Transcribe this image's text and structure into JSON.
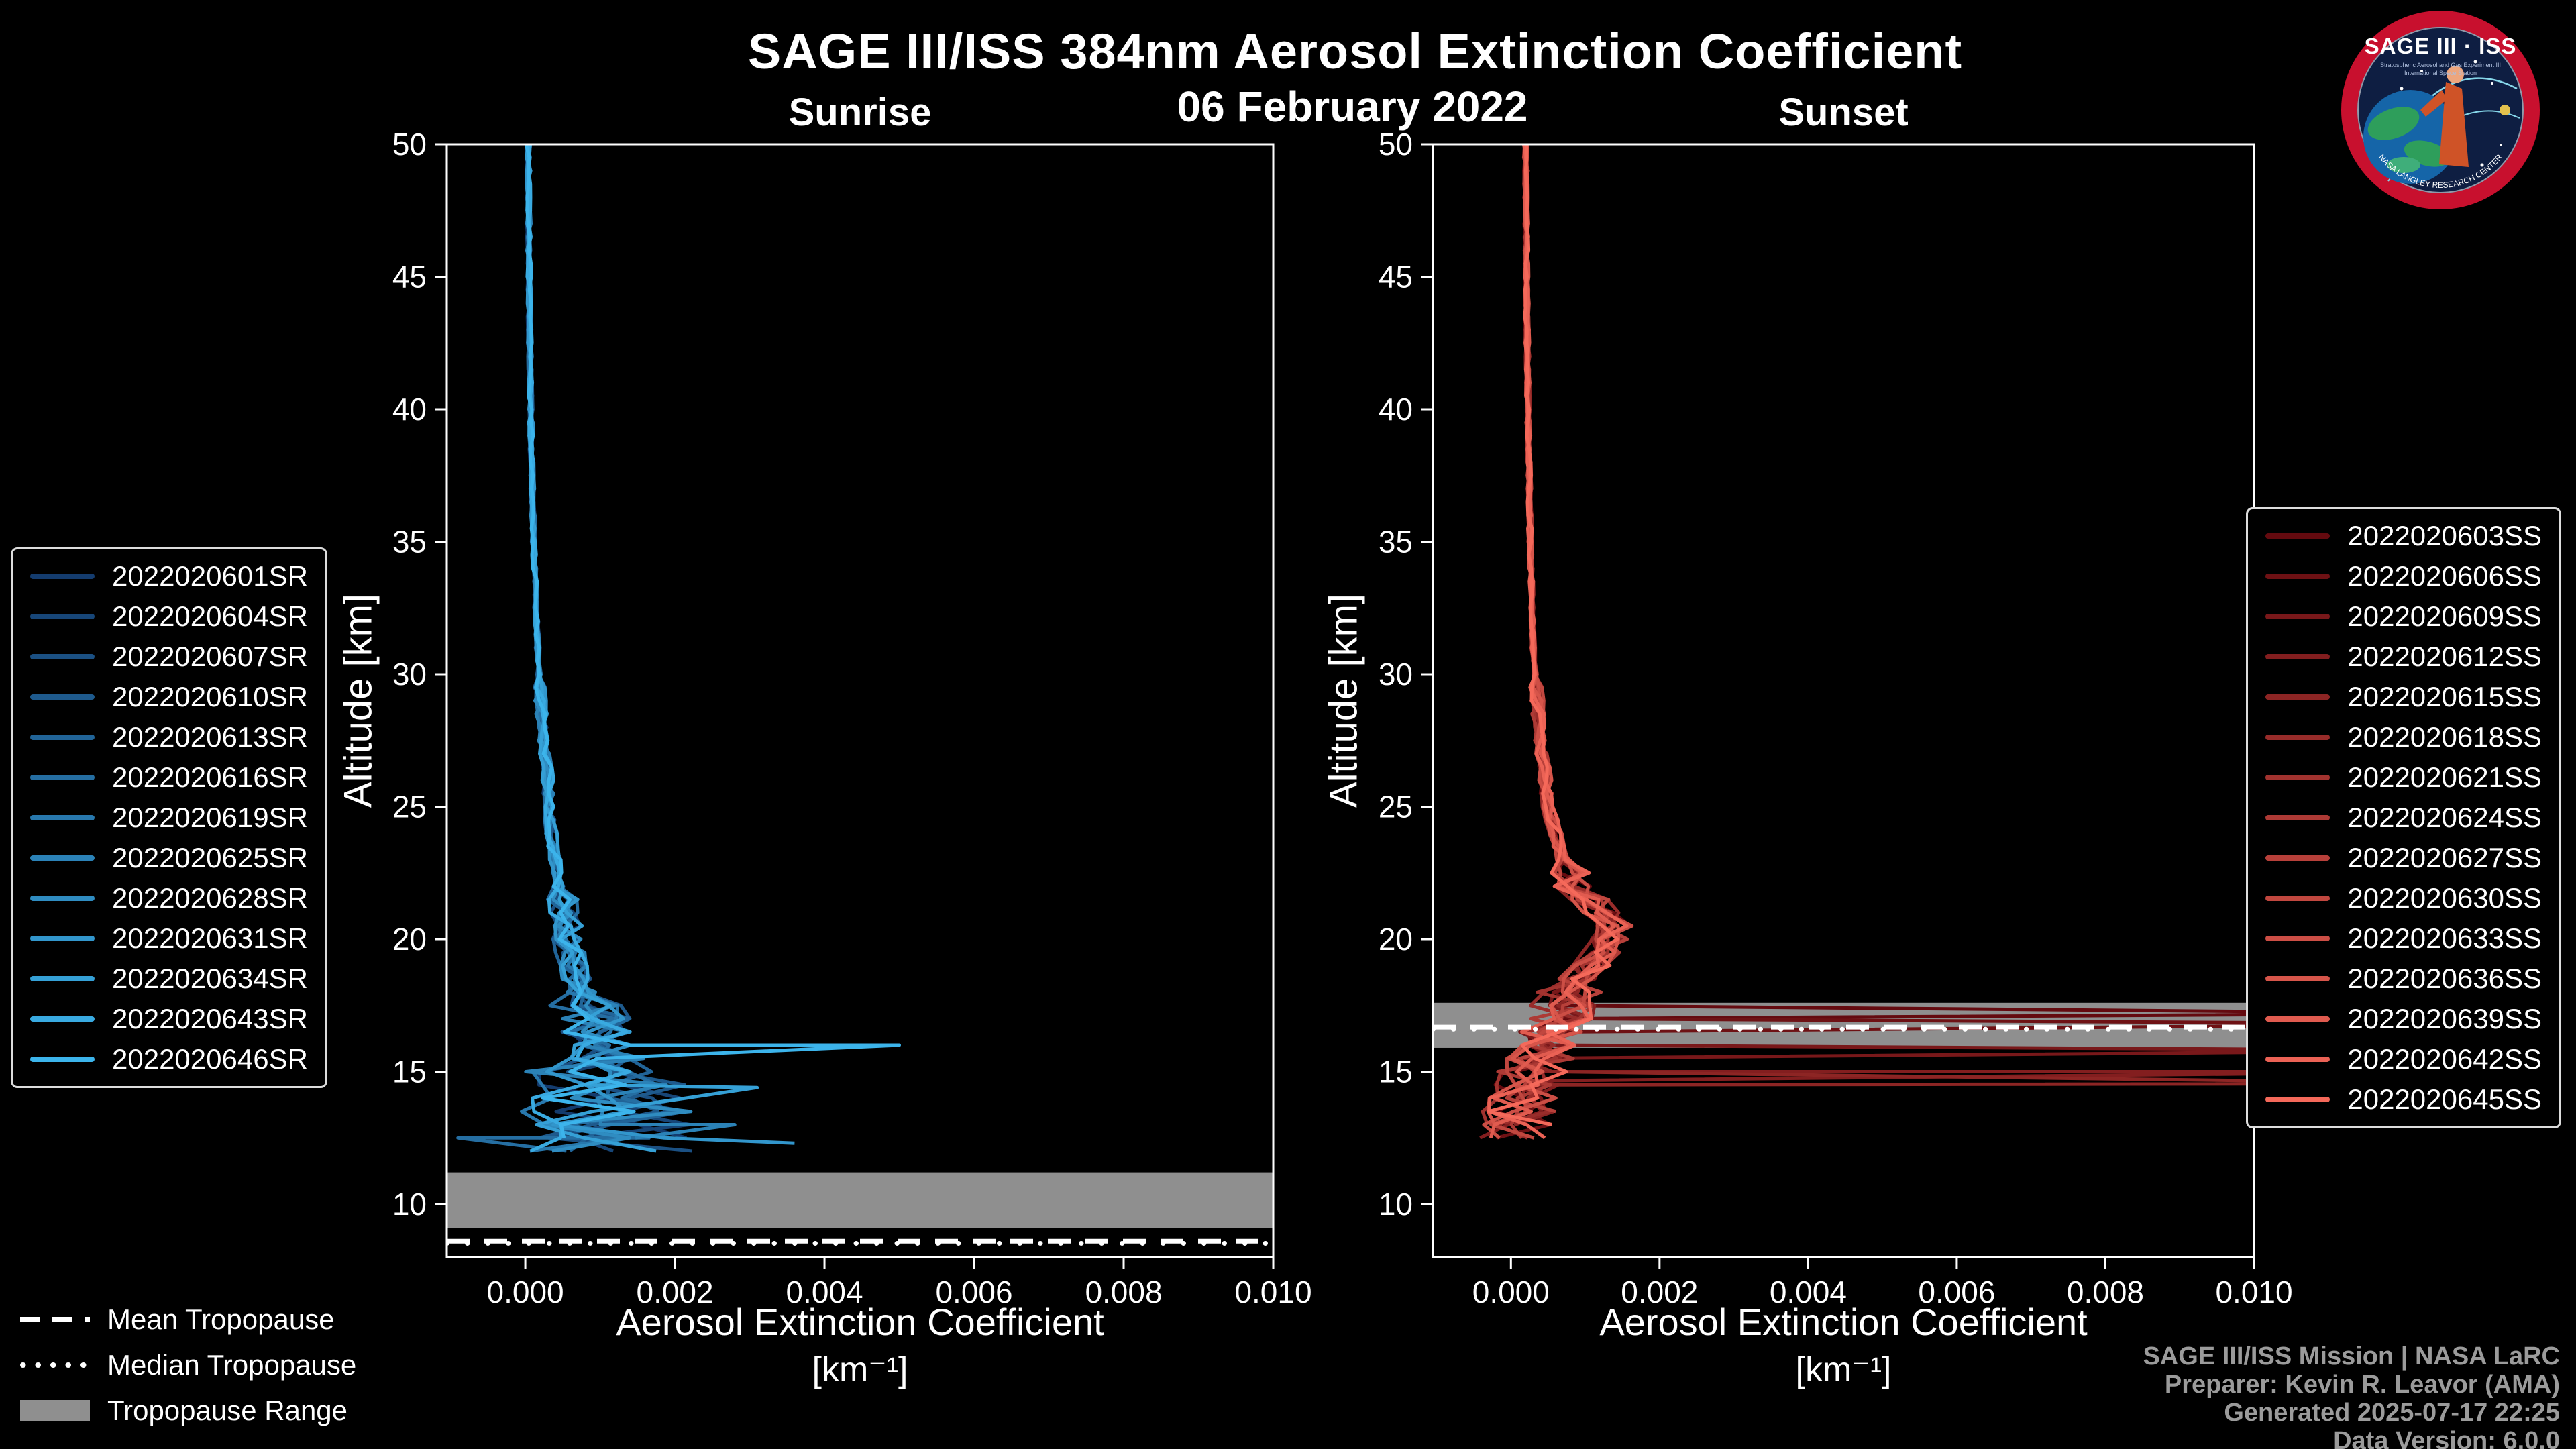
{
  "header": {
    "title": "SAGE III/ISS 384nm Aerosol Extinction Coefficient",
    "date": "06 February 2022"
  },
  "axes": {
    "y_label": "Altitude [km]",
    "x_label": "Aerosol Extinction Coefficient",
    "x_unit": "[km⁻¹]"
  },
  "tropopause_legend": {
    "mean_label": "Mean Tropopause",
    "median_label": "Median Tropopause",
    "range_label": "Tropopause Range"
  },
  "credits": [
    "SAGE III/ISS Mission | NASA LaRC",
    "Preparer: Kevin R. Leavor (AMA)",
    "Generated 2025-07-17 22:25",
    "Data Version: 6.0.0"
  ],
  "logo": {
    "title": "SAGE III · ISS",
    "subtitle1": "Stratospheric Aerosol and Gas Experiment III",
    "subtitle2": "International Space Station",
    "bottom": "NASA LANGLEY RESEARCH CENTER"
  },
  "chart_data": [
    {
      "id": "sunrise",
      "type": "line",
      "title": "Sunrise",
      "xlabel": "Aerosol Extinction Coefficient [km⁻¹]",
      "ylabel": "Altitude [km]",
      "xlim": [
        -0.00105,
        0.01
      ],
      "ylim": [
        8,
        50
      ],
      "x_ticks": [
        0,
        0.002,
        0.004,
        0.006,
        0.008,
        0.01
      ],
      "x_tick_labels": [
        "0.000",
        "0.002",
        "0.004",
        "0.006",
        "0.008",
        "0.010"
      ],
      "y_ticks": [
        10,
        15,
        20,
        25,
        30,
        35,
        40,
        45,
        50
      ],
      "grid": false,
      "legend_position": "outside-left",
      "band_color": "#8f8f8f",
      "tropopause": {
        "range": [
          9.1,
          11.2
        ],
        "mean": 8.6,
        "median": 8.52
      },
      "base_profile": [
        [
          50,
          4e-05
        ],
        [
          45,
          5e-05
        ],
        [
          40,
          7e-05
        ],
        [
          36,
          0.0001
        ],
        [
          32,
          0.00015
        ],
        [
          29,
          0.0002
        ],
        [
          26,
          0.0003
        ],
        [
          24,
          0.00035
        ],
        [
          22,
          0.00045
        ],
        [
          20.5,
          0.00055
        ],
        [
          19.5,
          0.0006
        ],
        [
          18.5,
          0.0007
        ],
        [
          17.5,
          0.0008
        ],
        [
          16.5,
          0.0009
        ],
        [
          16,
          0.00095
        ],
        [
          15.5,
          0.00105
        ],
        [
          15,
          0.0011
        ],
        [
          14.5,
          0.0012
        ],
        [
          14,
          0.00115
        ],
        [
          13.5,
          0.0011
        ],
        [
          13,
          0.00115
        ],
        [
          12.5,
          0.0012
        ],
        [
          12,
          0.0011
        ],
        [
          11.5,
          0.001
        ]
      ],
      "noise_bands": [
        [
          30,
          50,
          3e-05
        ],
        [
          22,
          30,
          8e-05
        ],
        [
          18,
          22,
          0.00022
        ],
        [
          15.5,
          18,
          0.00055
        ],
        [
          8,
          15.5,
          0.00115
        ]
      ],
      "series": [
        {
          "name": "2022020601SR",
          "color": "#143C6E",
          "end_alt": 12.4
        },
        {
          "name": "2022020604SR",
          "color": "#174678",
          "end_alt": 12.0
        },
        {
          "name": "2022020607SR",
          "color": "#1B5083",
          "end_alt": 11.8
        },
        {
          "name": "2022020610SR",
          "color": "#1E5A8D",
          "end_alt": 12.2
        },
        {
          "name": "2022020613SR",
          "color": "#216498",
          "end_alt": 11.6
        },
        {
          "name": "2022020616SR",
          "color": "#256EA2",
          "end_alt": 12.0,
          "features": [
            {
              "type": "spike",
              "alt": 12.5,
              "value": -0.0009
            }
          ]
        },
        {
          "name": "2022020619SR",
          "color": "#2878AD",
          "end_alt": 11.9
        },
        {
          "name": "2022020625SR",
          "color": "#2B82B7",
          "end_alt": 12.3,
          "features": [
            {
              "type": "spike",
              "alt": 13.0,
              "value": 0.0028
            }
          ]
        },
        {
          "name": "2022020628SR",
          "color": "#2F8CC1",
          "end_alt": 11.7
        },
        {
          "name": "2022020631SR",
          "color": "#3296CC",
          "end_alt": 12.1,
          "features": [
            {
              "type": "spike",
              "alt": 12.3,
              "value": 0.0036
            }
          ]
        },
        {
          "name": "2022020634SR",
          "color": "#35A0D6",
          "end_alt": 12.0,
          "features": [
            {
              "type": "spike",
              "alt": 14.4,
              "value": 0.0031
            }
          ]
        },
        {
          "name": "2022020643SR",
          "color": "#39AAE1",
          "end_alt": 11.8
        },
        {
          "name": "2022020646SR",
          "color": "#3CB4EB",
          "end_alt": 12.5,
          "features": [
            {
              "type": "spike",
              "alt": 16.0,
              "value": 0.005
            }
          ]
        }
      ]
    },
    {
      "id": "sunset",
      "type": "line",
      "title": "Sunset",
      "xlabel": "Aerosol Extinction Coefficient [km⁻¹]",
      "ylabel": "Altitude [km]",
      "xlim": [
        -0.00105,
        0.01
      ],
      "ylim": [
        8,
        50
      ],
      "x_ticks": [
        0,
        0.002,
        0.004,
        0.006,
        0.008,
        0.01
      ],
      "x_tick_labels": [
        "0.000",
        "0.002",
        "0.004",
        "0.006",
        "0.008",
        "0.010"
      ],
      "y_ticks": [
        10,
        15,
        20,
        25,
        30,
        35,
        40,
        45,
        50
      ],
      "grid": false,
      "legend_position": "outside-right",
      "band_color": "#8f8f8f",
      "tropopause": {
        "range": [
          15.9,
          17.6
        ],
        "mean": 16.68,
        "median": 16.6
      },
      "base_profile": [
        [
          50,
          0.0002
        ],
        [
          45,
          0.00021
        ],
        [
          40,
          0.00023
        ],
        [
          35,
          0.00026
        ],
        [
          31,
          0.0003
        ],
        [
          28,
          0.00038
        ],
        [
          25,
          0.0005
        ],
        [
          23,
          0.0007
        ],
        [
          22,
          0.00085
        ],
        [
          21.2,
          0.00115
        ],
        [
          20.6,
          0.00135
        ],
        [
          20.2,
          0.0014
        ],
        [
          19.8,
          0.0013
        ],
        [
          19.3,
          0.00115
        ],
        [
          18.8,
          0.001
        ],
        [
          18.3,
          0.00085
        ],
        [
          17.8,
          0.00075
        ],
        [
          17.3,
          0.00065
        ],
        [
          16.8,
          0.00055
        ],
        [
          16.3,
          0.00045
        ],
        [
          15.8,
          0.0004
        ],
        [
          15.3,
          0.00033
        ],
        [
          14.8,
          0.00028
        ],
        [
          14.3,
          0.0002
        ],
        [
          13.8,
          0.00015
        ],
        [
          13.3,
          0.0001
        ],
        [
          12.8,
          5e-05
        ],
        [
          12.2,
          0.0
        ]
      ],
      "noise_bands": [
        [
          30,
          50,
          3e-05
        ],
        [
          23,
          30,
          9e-05
        ],
        [
          18.5,
          23,
          0.00028
        ],
        [
          8,
          18.5,
          0.0005
        ]
      ],
      "series": [
        {
          "name": "2022020603SS",
          "color": "#640A0F",
          "end_alt": 12.6,
          "features": [
            {
              "type": "offscale",
              "alt": 17.2,
              "half": 0.3
            }
          ]
        },
        {
          "name": "2022020606SS",
          "color": "#6E1114",
          "end_alt": 12.3,
          "features": [
            {
              "type": "offscale",
              "alt": 16.8,
              "half": 0.3
            }
          ]
        },
        {
          "name": "2022020609SS",
          "color": "#79181A",
          "end_alt": 12.8,
          "features": [
            {
              "type": "offscale",
              "alt": 15.8,
              "half": 0.3
            }
          ]
        },
        {
          "name": "2022020612SS",
          "color": "#831E1F",
          "end_alt": 12.2,
          "features": [
            {
              "type": "offscale",
              "alt": 15.0,
              "half": 0.35
            }
          ]
        },
        {
          "name": "2022020615SS",
          "color": "#8D2524",
          "end_alt": 13.0,
          "features": [
            {
              "type": "offscale",
              "alt": 14.55,
              "half": 0.7
            }
          ]
        },
        {
          "name": "2022020618SS",
          "color": "#982C2A",
          "end_alt": 12.4
        },
        {
          "name": "2022020621SS",
          "color": "#A2332F",
          "end_alt": 12.9
        },
        {
          "name": "2022020624SS",
          "color": "#AD3A35",
          "end_alt": 12.2
        },
        {
          "name": "2022020627SS",
          "color": "#B7403A",
          "end_alt": 13.2
        },
        {
          "name": "2022020630SS",
          "color": "#C1473F",
          "end_alt": 12.5
        },
        {
          "name": "2022020633SS",
          "color": "#CC4E45",
          "end_alt": 12.3
        },
        {
          "name": "2022020636SS",
          "color": "#D6554A",
          "end_alt": 12.7
        },
        {
          "name": "2022020639SS",
          "color": "#E05B4F",
          "end_alt": 12.1
        },
        {
          "name": "2022020642SS",
          "color": "#EB6255",
          "end_alt": 12.4
        },
        {
          "name": "2022020645SS",
          "color": "#F5695A",
          "end_alt": 12.6
        }
      ]
    }
  ]
}
